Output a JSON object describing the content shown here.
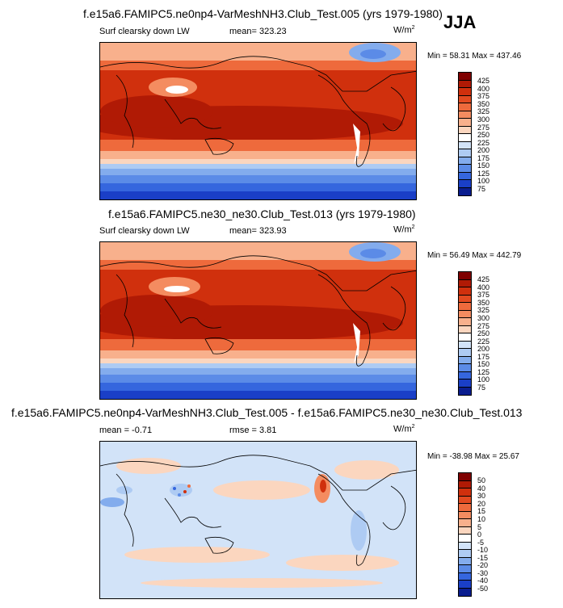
{
  "season": "JJA",
  "panels": [
    {
      "title": "f.e15a6.FAMIPC5.ne0np4-VarMeshNH3.Club_Test.005 (yrs 1979-1980)",
      "left_label": "Surf clearsky down LW",
      "center_label": "mean= 323.23",
      "units": "W/m",
      "units_exp": "2",
      "minmax": "Min = 58.31 Max = 437.46",
      "legend": [
        "425",
        "400",
        "375",
        "350",
        "325",
        "300",
        "275",
        "250",
        "225",
        "200",
        "175",
        "150",
        "125",
        "100",
        "75"
      ]
    },
    {
      "title": "f.e15a6.FAMIPC5.ne30_ne30.Club_Test.013 (yrs 1979-1980)",
      "left_label": "Surf clearsky down LW",
      "center_label": "mean= 323.93",
      "units": "W/m",
      "units_exp": "2",
      "minmax": "Min = 56.49 Max = 442.79",
      "legend": [
        "425",
        "400",
        "375",
        "350",
        "325",
        "300",
        "275",
        "250",
        "225",
        "200",
        "175",
        "150",
        "125",
        "100",
        "75"
      ]
    },
    {
      "title": "f.e15a6.FAMIPC5.ne0np4-VarMeshNH3.Club_Test.005 - f.e15a6.FAMIPC5.ne30_ne30.Club_Test.013",
      "left_label": "mean = -0.71",
      "center_label": "rmse = 3.81",
      "units": "W/m",
      "units_exp": "2",
      "minmax": "Min = -38.98 Max = 25.67",
      "legend": [
        "50",
        "40",
        "30",
        "20",
        "15",
        "10",
        "5",
        "0",
        "-5",
        "-10",
        "-15",
        "-20",
        "-30",
        "-40",
        "-50"
      ]
    }
  ],
  "colors": {
    "abs_scale": [
      "#7f0000",
      "#b01a05",
      "#d0300d",
      "#e24a20",
      "#ee6a3c",
      "#f48c60",
      "#f8b08c",
      "#fbd6bf",
      "#ffffff",
      "#d2e3f8",
      "#aecbf3",
      "#83aced",
      "#5b8be7",
      "#3566de",
      "#1a3fc7",
      "#0a1d8f"
    ],
    "diff_scale": [
      "#7f0000",
      "#b01a05",
      "#d0300d",
      "#e24a20",
      "#ee6a3c",
      "#f48c60",
      "#f8b08c",
      "#fbd6bf",
      "#ffffff",
      "#d2e3f8",
      "#aecbf3",
      "#83aced",
      "#5b8be7",
      "#3566de",
      "#1a3fc7",
      "#0a1d8f"
    ]
  }
}
